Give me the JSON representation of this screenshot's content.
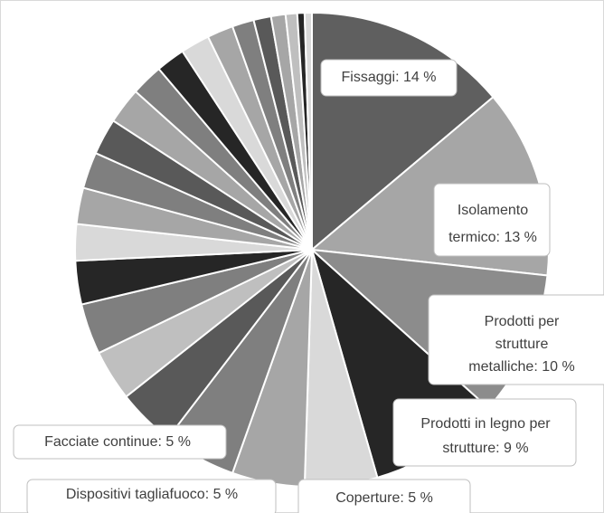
{
  "chart_data": {
    "type": "pie",
    "categories": [
      "Fissaggi: 14 %",
      "Isolamento termico: 13 %",
      "Prodotti per strutture metalliche: 10 %",
      "Prodotti in legno per strutture: 9 %",
      "Coperture: 5 %",
      "Dispositivi  tagliafuoco: 5 %",
      "Facciate continue: 5 %",
      null,
      null,
      null,
      null,
      null,
      null,
      null,
      null,
      null,
      null,
      null,
      null,
      null,
      null,
      null,
      null,
      null,
      null,
      null
    ],
    "values": [
      14,
      13,
      10,
      9,
      5,
      5,
      5,
      4,
      3.5,
      3.5,
      3,
      2.5,
      2.5,
      2.5,
      2.5,
      2.5,
      2.2,
      2,
      2,
      1.8,
      1.5,
      1.2,
      1,
      0.8,
      0.5,
      0.5
    ],
    "colors": [
      "#5f5f5f",
      "#a6a6a6",
      "#8c8c8c",
      "#262626",
      "#d9d9d9",
      "#a6a6a6",
      "#7f7f7f",
      "#595959",
      "#bfbfbf",
      "#7f7f7f",
      "#262626",
      "#d9d9d9",
      "#a6a6a6",
      "#7f7f7f",
      "#595959",
      "#a6a6a6",
      "#7f7f7f",
      "#262626",
      "#d9d9d9",
      "#a6a6a6",
      "#7f7f7f",
      "#595959",
      "#a6a6a6",
      "#bfbfbf",
      "#262626",
      "#d9d9d9"
    ]
  }
}
